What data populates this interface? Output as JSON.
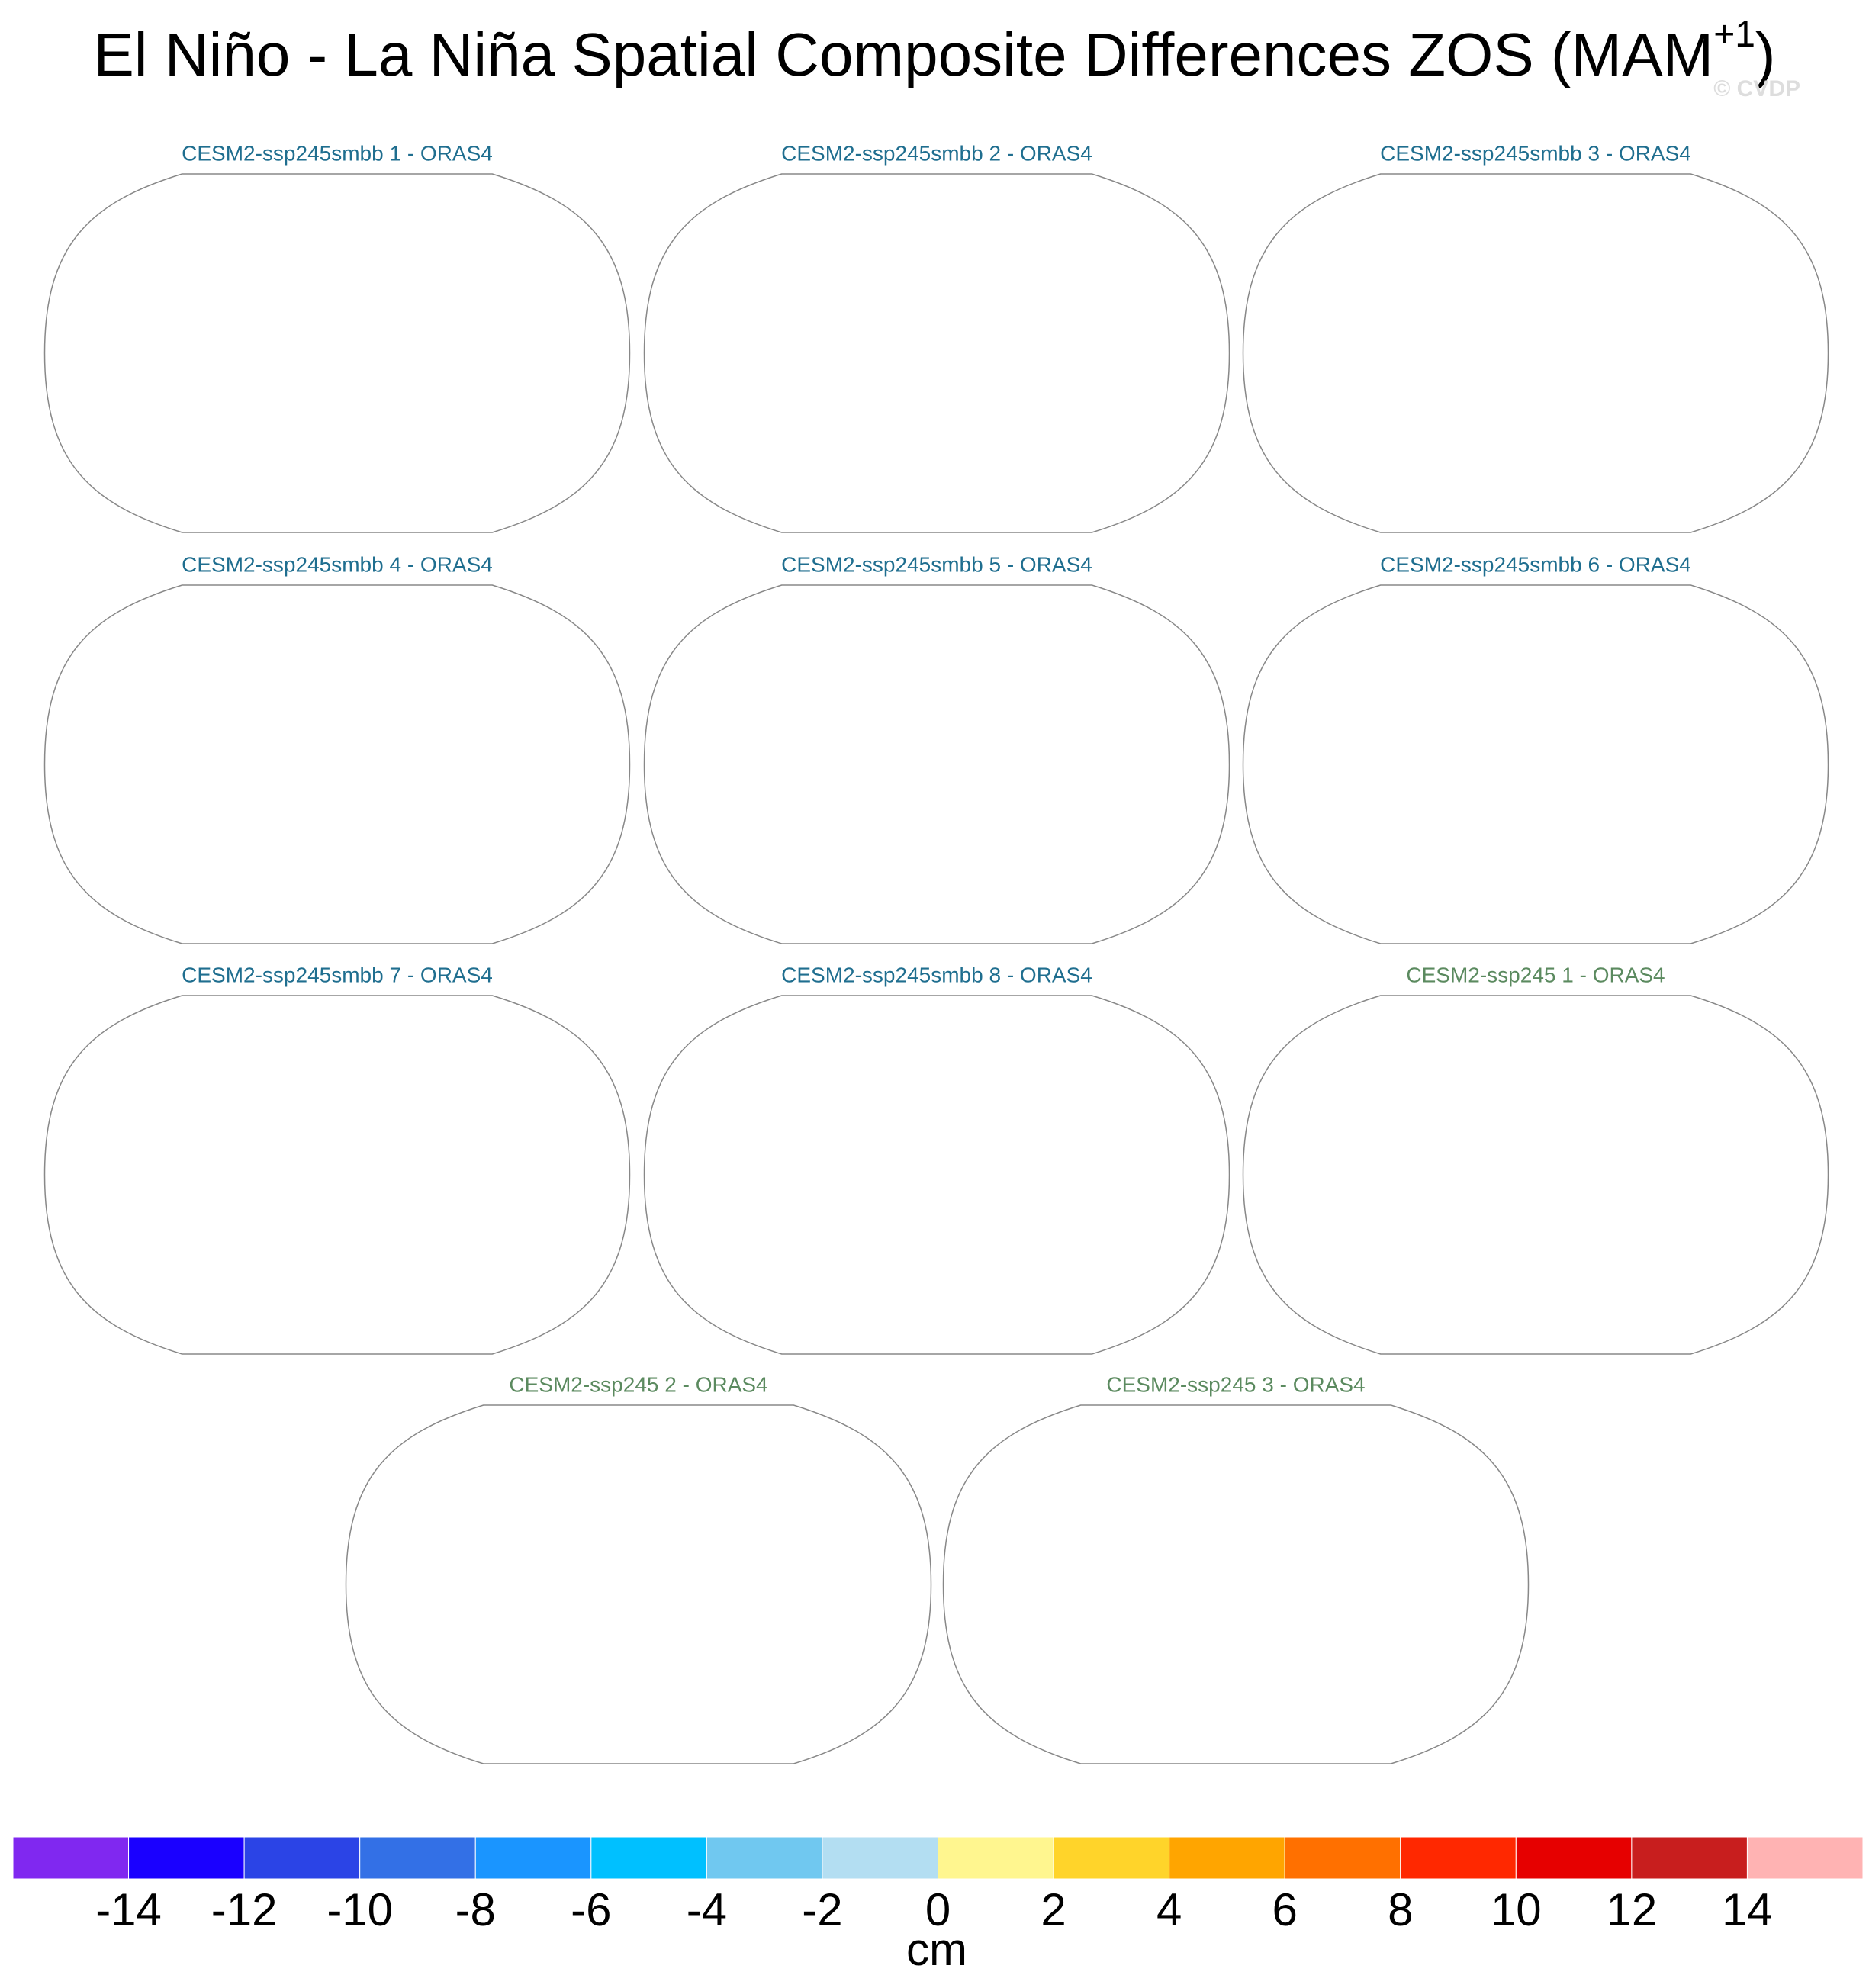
{
  "title": {
    "main": "El Niño - La Niña Spatial Composite Differences ZOS (MAM",
    "superscript": "+1",
    "end": ")"
  },
  "watermark": "© CVDP",
  "panels": [
    {
      "title": "CESM2-ssp245smbb 1 - ORAS4",
      "color": "#1f6e8f"
    },
    {
      "title": "CESM2-ssp245smbb 2 - ORAS4",
      "color": "#1f6e8f"
    },
    {
      "title": "CESM2-ssp245smbb 3 - ORAS4",
      "color": "#1f6e8f"
    },
    {
      "title": "CESM2-ssp245smbb 4 - ORAS4",
      "color": "#1f6e8f"
    },
    {
      "title": "CESM2-ssp245smbb 5 - ORAS4",
      "color": "#1f6e8f"
    },
    {
      "title": "CESM2-ssp245smbb 6 - ORAS4",
      "color": "#1f6e8f"
    },
    {
      "title": "CESM2-ssp245smbb 7 - ORAS4",
      "color": "#1f6e8f"
    },
    {
      "title": "CESM2-ssp245smbb 8 - ORAS4",
      "color": "#1f6e8f"
    },
    {
      "title": "CESM2-ssp245 1 - ORAS4",
      "color": "#5b8a5f"
    },
    {
      "title": "CESM2-ssp245 2 - ORAS4",
      "color": "#5b8a5f"
    },
    {
      "title": "CESM2-ssp245 3 - ORAS4",
      "color": "#5b8a5f"
    }
  ],
  "colorbar": {
    "levels": [
      -14,
      -12,
      -10,
      -8,
      -6,
      -4,
      -2,
      0,
      2,
      4,
      6,
      8,
      10,
      12,
      14
    ],
    "colors": [
      "#8028f0",
      "#1a00ff",
      "#2b44e6",
      "#3370e6",
      "#1a95ff",
      "#00c0ff",
      "#70c8f0",
      "#b3def2",
      "#fff68f",
      "#ffd42a",
      "#ffa500",
      "#ff7000",
      "#ff2800",
      "#e60000",
      "#c81e1e",
      "#ffb3b3"
    ],
    "unit": "cm"
  }
}
